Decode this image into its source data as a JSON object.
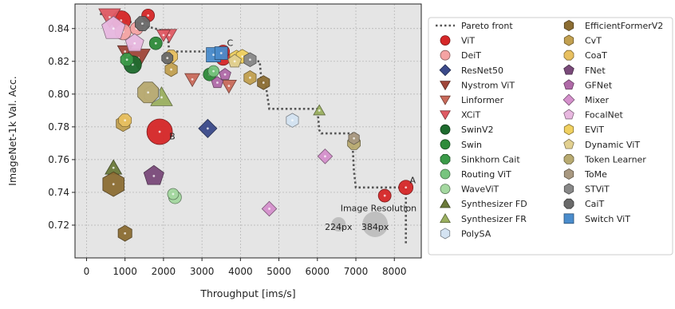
{
  "chart_data": {
    "type": "scatter",
    "xlabel": "Throughput [ims/s]",
    "ylabel": "ImageNet-1k Val. Acc.",
    "xlim": [
      -300,
      8700
    ],
    "ylim": [
      0.7,
      0.855
    ],
    "x_ticks": [
      "0",
      "1000",
      "2000",
      "3000",
      "4000",
      "5000",
      "6000",
      "7000",
      "8000"
    ],
    "y_ticks": [
      "0.72",
      "0.74",
      "0.76",
      "0.78",
      "0.80",
      "0.82",
      "0.84"
    ],
    "grid": true,
    "legend_position": "right-outside",
    "legend": [
      {
        "name": "Pareto front",
        "marker": "dotted-line",
        "color": "#555555"
      },
      {
        "name": "ViT",
        "marker": "circle",
        "color": "#d62728"
      },
      {
        "name": "DeiT",
        "marker": "circle",
        "color": "#f4a3a3"
      },
      {
        "name": "ResNet50",
        "marker": "diamond",
        "color": "#3b4a8a"
      },
      {
        "name": "Nystrom ViT",
        "marker": "triangle-down",
        "color": "#a0463a"
      },
      {
        "name": "Linformer",
        "marker": "triangle-down",
        "color": "#c96a5a"
      },
      {
        "name": "XCiT",
        "marker": "triangle-down",
        "color": "#e05a64"
      },
      {
        "name": "SwinV2",
        "marker": "circle",
        "color": "#1e6b2e"
      },
      {
        "name": "Swin",
        "marker": "circle",
        "color": "#2e8b3a"
      },
      {
        "name": "Sinkhorn Cait",
        "marker": "octagon",
        "color": "#3a9a48"
      },
      {
        "name": "Routing ViT",
        "marker": "circle",
        "color": "#77c47e"
      },
      {
        "name": "WaveViT",
        "marker": "circle",
        "color": "#a4d8a0"
      },
      {
        "name": "Synthesizer FD",
        "marker": "triangle-up",
        "color": "#6b7a3a"
      },
      {
        "name": "Synthesizer FR",
        "marker": "triangle-up",
        "color": "#9bb060"
      },
      {
        "name": "PolySA",
        "marker": "hexagon",
        "color": "#d4e3f2"
      },
      {
        "name": "EfficientFormerV2",
        "marker": "hexagon",
        "color": "#8c6d33"
      },
      {
        "name": "CvT",
        "marker": "hexagon",
        "color": "#c2a050"
      },
      {
        "name": "CoaT",
        "marker": "octagon",
        "color": "#e8c060"
      },
      {
        "name": "FNet",
        "marker": "pentagon",
        "color": "#7a4a7a"
      },
      {
        "name": "GFNet",
        "marker": "pentagon",
        "color": "#b06aa8"
      },
      {
        "name": "Mixer",
        "marker": "diamond",
        "color": "#d590cc"
      },
      {
        "name": "FocalNet",
        "marker": "pentagon",
        "color": "#e8b8e0"
      },
      {
        "name": "EViT",
        "marker": "hexagon",
        "color": "#f0d060"
      },
      {
        "name": "Dynamic ViT",
        "marker": "pentagon",
        "color": "#e2d090"
      },
      {
        "name": "Token Learner",
        "marker": "octagon",
        "color": "#b8aa70"
      },
      {
        "name": "ToMe",
        "marker": "hexagon",
        "color": "#a89880"
      },
      {
        "name": "STViT",
        "marker": "hexagon",
        "color": "#888888"
      },
      {
        "name": "CaiT",
        "marker": "octagon",
        "color": "#6a6a6a"
      },
      {
        "name": "Switch ViT",
        "marker": "square",
        "color": "#4a8ccc"
      }
    ],
    "pareto_front": [
      [
        350,
        0.849
      ],
      [
        2100,
        0.838
      ],
      [
        2150,
        0.826
      ],
      [
        3350,
        0.826
      ],
      [
        3400,
        0.823
      ],
      [
        4000,
        0.823
      ],
      [
        4050,
        0.82
      ],
      [
        4500,
        0.82
      ],
      [
        4550,
        0.807
      ],
      [
        4650,
        0.807
      ],
      [
        4700,
        0.799
      ],
      [
        4750,
        0.791
      ],
      [
        6000,
        0.791
      ],
      [
        6050,
        0.778
      ],
      [
        6100,
        0.776
      ],
      [
        6900,
        0.776
      ],
      [
        6950,
        0.753
      ],
      [
        7000,
        0.743
      ],
      [
        8300,
        0.743
      ],
      [
        8300,
        0.708
      ]
    ],
    "points": [
      {
        "series": "ViT",
        "x": 8300,
        "y": 0.743,
        "s": 9
      },
      {
        "series": "ViT",
        "x": 7750,
        "y": 0.738,
        "s": 8
      },
      {
        "series": "ViT",
        "x": 1900,
        "y": 0.777,
        "s": 16
      },
      {
        "series": "ViT",
        "x": 3550,
        "y": 0.822,
        "s": 9
      },
      {
        "series": "ViT",
        "x": 3550,
        "y": 0.826,
        "s": 8
      },
      {
        "series": "ViT",
        "x": 1600,
        "y": 0.848,
        "s": 8
      },
      {
        "series": "ViT",
        "x": 900,
        "y": 0.845,
        "s": 12
      },
      {
        "series": "DeiT",
        "x": 950,
        "y": 0.838,
        "s": 10
      },
      {
        "series": "DeiT",
        "x": 1300,
        "y": 0.84,
        "s": 8
      },
      {
        "series": "ResNet50",
        "x": 3150,
        "y": 0.779,
        "s": 10
      },
      {
        "series": "Nystrom ViT",
        "x": 1350,
        "y": 0.822,
        "s": 14
      },
      {
        "series": "Nystrom ViT",
        "x": 1000,
        "y": 0.826,
        "s": 9
      },
      {
        "series": "Linformer",
        "x": 2750,
        "y": 0.809,
        "s": 9
      },
      {
        "series": "Linformer",
        "x": 3700,
        "y": 0.805,
        "s": 9
      },
      {
        "series": "XCiT",
        "x": 2150,
        "y": 0.836,
        "s": 9
      },
      {
        "series": "XCiT",
        "x": 2000,
        "y": 0.836,
        "s": 8
      },
      {
        "series": "XCiT",
        "x": 600,
        "y": 0.847,
        "s": 13
      },
      {
        "series": "SwinV2",
        "x": 1200,
        "y": 0.818,
        "s": 11
      },
      {
        "series": "Swin",
        "x": 1800,
        "y": 0.831,
        "s": 8
      },
      {
        "series": "Swin",
        "x": 3200,
        "y": 0.812,
        "s": 8
      },
      {
        "series": "Sinkhorn Cait",
        "x": 1050,
        "y": 0.821,
        "s": 8
      },
      {
        "series": "Routing ViT",
        "x": 3300,
        "y": 0.814,
        "s": 7
      },
      {
        "series": "WaveViT",
        "x": 2300,
        "y": 0.737,
        "s": 8
      },
      {
        "series": "WaveViT",
        "x": 2250,
        "y": 0.739,
        "s": 7
      },
      {
        "series": "Synthesizer FD",
        "x": 700,
        "y": 0.755,
        "s": 10
      },
      {
        "series": "Synthesizer FR",
        "x": 1950,
        "y": 0.798,
        "s": 13
      },
      {
        "series": "Synthesizer FR",
        "x": 6050,
        "y": 0.79,
        "s": 7
      },
      {
        "series": "PolySA",
        "x": 5350,
        "y": 0.784,
        "s": 8
      },
      {
        "series": "PolySA",
        "x": 1700,
        "y": 0.8,
        "s": 10
      },
      {
        "series": "EfficientFormerV2",
        "x": 700,
        "y": 0.745,
        "s": 14
      },
      {
        "series": "EfficientFormerV2",
        "x": 1000,
        "y": 0.715,
        "s": 9
      },
      {
        "series": "EfficientFormerV2",
        "x": 4600,
        "y": 0.807,
        "s": 8
      },
      {
        "series": "CvT",
        "x": 950,
        "y": 0.782,
        "s": 9
      },
      {
        "series": "CvT",
        "x": 2200,
        "y": 0.815,
        "s": 8
      },
      {
        "series": "CvT",
        "x": 4250,
        "y": 0.81,
        "s": 8
      },
      {
        "series": "CoaT",
        "x": 1000,
        "y": 0.784,
        "s": 8
      },
      {
        "series": "CoaT",
        "x": 2200,
        "y": 0.823,
        "s": 8
      },
      {
        "series": "FNet",
        "x": 1750,
        "y": 0.75,
        "s": 12
      },
      {
        "series": "GFNet",
        "x": 3400,
        "y": 0.807,
        "s": 7
      },
      {
        "series": "GFNet",
        "x": 3600,
        "y": 0.812,
        "s": 7
      },
      {
        "series": "Mixer",
        "x": 6200,
        "y": 0.762,
        "s": 8
      },
      {
        "series": "Mixer",
        "x": 4750,
        "y": 0.73,
        "s": 8
      },
      {
        "series": "FocalNet",
        "x": 700,
        "y": 0.84,
        "s": 14
      },
      {
        "series": "FocalNet",
        "x": 1250,
        "y": 0.831,
        "s": 11
      },
      {
        "series": "EViT",
        "x": 3900,
        "y": 0.822,
        "s": 9
      },
      {
        "series": "EViT",
        "x": 4050,
        "y": 0.823,
        "s": 8
      },
      {
        "series": "Dynamic ViT",
        "x": 3850,
        "y": 0.82,
        "s": 8
      },
      {
        "series": "Token Learner",
        "x": 1600,
        "y": 0.801,
        "s": 13
      },
      {
        "series": "Token Learner",
        "x": 6950,
        "y": 0.77,
        "s": 8
      },
      {
        "series": "ToMe",
        "x": 6950,
        "y": 0.773,
        "s": 7
      },
      {
        "series": "STViT",
        "x": 4250,
        "y": 0.821,
        "s": 8
      },
      {
        "series": "CaiT",
        "x": 1450,
        "y": 0.843,
        "s": 9
      },
      {
        "series": "CaiT",
        "x": 2100,
        "y": 0.822,
        "s": 7
      },
      {
        "series": "Switch ViT",
        "x": 3300,
        "y": 0.824,
        "s": 9
      },
      {
        "series": "Switch ViT",
        "x": 3500,
        "y": 0.825,
        "s": 8
      }
    ],
    "annotations": [
      {
        "text": "A",
        "x": 8400,
        "y": 0.7455
      },
      {
        "text": "B",
        "x": 2150,
        "y": 0.7725
      },
      {
        "text": "C",
        "x": 3650,
        "y": 0.8295
      }
    ],
    "size_legend": {
      "title": "Image Resolution",
      "items": [
        {
          "label": "224px",
          "x": 6550,
          "y": 0.7205,
          "s": 9
        },
        {
          "label": "384px",
          "x": 7500,
          "y": 0.7205,
          "s": 16
        }
      ],
      "color": "#b8b8b8"
    }
  }
}
